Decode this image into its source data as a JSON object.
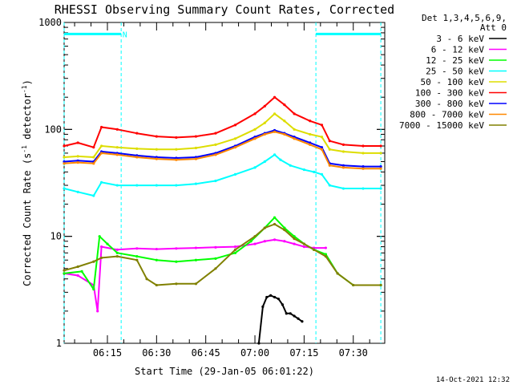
{
  "chart_data": {
    "type": "line",
    "title": "RHESSI Observing Summary Count Rates, Corrected",
    "ylabel_main": "Corrected Count Rate (s",
    "ylabel_sup1": "-1",
    "ylabel_mid": " detector",
    "ylabel_sup2": "-1",
    "ylabel_end": ")",
    "xlabel": "Start Time (29-Jan-05 06:01:22)",
    "timestamp": "14-Oct-2021 12:32",
    "y_scale": "log",
    "ylim": [
      1,
      1000
    ],
    "xlim_minutes": [
      6.03,
      7.66
    ],
    "y_ticks": [
      {
        "value": 1,
        "label": "1"
      },
      {
        "value": 10,
        "label": "10"
      },
      {
        "value": 100,
        "label": "100"
      },
      {
        "value": 1000,
        "label": "1000"
      }
    ],
    "x_ticks": [
      {
        "value": 6.25,
        "label": "06:15"
      },
      {
        "value": 6.5,
        "label": "06:30"
      },
      {
        "value": 6.75,
        "label": "06:45"
      },
      {
        "value": 7.0,
        "label": "07:00"
      },
      {
        "value": 7.25,
        "label": "07:15"
      },
      {
        "value": 7.5,
        "label": "07:30"
      }
    ],
    "legend_header": [
      "Det 1,3,4,5,6,9,",
      "Att 0"
    ],
    "annotations": [
      {
        "text": "N",
        "x": 6.31,
        "y": 780
      }
    ],
    "night_markers": [
      6.03,
      6.32,
      7.31,
      7.64
    ],
    "night_bars": [
      [
        6.03,
        6.32
      ],
      [
        7.31,
        7.64
      ]
    ],
    "night_color": "#00ffff",
    "series": [
      {
        "name": "3 - 6 keV",
        "color": "#000000",
        "y": [
          [
            7.02,
            1
          ],
          [
            7.04,
            2.2
          ],
          [
            7.06,
            2.7
          ],
          [
            7.08,
            2.8
          ],
          [
            7.1,
            2.7
          ],
          [
            7.12,
            2.6
          ],
          [
            7.14,
            2.3
          ],
          [
            7.16,
            1.9
          ],
          [
            7.18,
            1.9
          ],
          [
            7.2,
            1.8
          ],
          [
            7.22,
            1.7
          ],
          [
            7.24,
            1.6
          ]
        ]
      },
      {
        "name": "6 - 12 keV",
        "color": "#ff00ff",
        "y": [
          [
            6.03,
            4.5
          ],
          [
            6.1,
            4.3
          ],
          [
            6.18,
            3.5
          ],
          [
            6.2,
            2.0
          ],
          [
            6.22,
            8.0
          ],
          [
            6.3,
            7.5
          ],
          [
            6.4,
            7.7
          ],
          [
            6.5,
            7.6
          ],
          [
            6.6,
            7.7
          ],
          [
            6.7,
            7.8
          ],
          [
            6.8,
            7.9
          ],
          [
            6.9,
            8.0
          ],
          [
            7.0,
            8.5
          ],
          [
            7.05,
            9.0
          ],
          [
            7.1,
            9.3
          ],
          [
            7.15,
            9.0
          ],
          [
            7.2,
            8.5
          ],
          [
            7.25,
            8.0
          ],
          [
            7.3,
            7.8
          ],
          [
            7.36,
            7.8
          ]
        ]
      },
      {
        "name": "12 - 25 keV",
        "color": "#00ff00",
        "y": [
          [
            6.03,
            4.5
          ],
          [
            6.12,
            4.7
          ],
          [
            6.18,
            3.2
          ],
          [
            6.21,
            10
          ],
          [
            6.25,
            8.5
          ],
          [
            6.3,
            7.0
          ],
          [
            6.4,
            6.5
          ],
          [
            6.5,
            6.0
          ],
          [
            6.6,
            5.8
          ],
          [
            6.7,
            6.0
          ],
          [
            6.8,
            6.2
          ],
          [
            6.9,
            7.0
          ],
          [
            6.98,
            9.0
          ],
          [
            7.05,
            12
          ],
          [
            7.1,
            15
          ],
          [
            7.15,
            12
          ],
          [
            7.2,
            10
          ],
          [
            7.25,
            8.5
          ],
          [
            7.3,
            7.5
          ],
          [
            7.36,
            6.8
          ],
          [
            7.42,
            4.5
          ],
          [
            7.5,
            3.5
          ],
          [
            7.64,
            3.5
          ]
        ]
      },
      {
        "name": "25 - 50 keV",
        "color": "#00ffff",
        "y": [
          [
            6.03,
            28
          ],
          [
            6.1,
            26
          ],
          [
            6.18,
            24
          ],
          [
            6.22,
            32
          ],
          [
            6.3,
            30
          ],
          [
            6.4,
            30
          ],
          [
            6.5,
            30
          ],
          [
            6.6,
            30
          ],
          [
            6.7,
            31
          ],
          [
            6.8,
            33
          ],
          [
            6.9,
            38
          ],
          [
            7.0,
            44
          ],
          [
            7.05,
            50
          ],
          [
            7.1,
            58
          ],
          [
            7.13,
            52
          ],
          [
            7.18,
            46
          ],
          [
            7.25,
            42
          ],
          [
            7.3,
            40
          ],
          [
            7.34,
            38
          ],
          [
            7.38,
            30
          ],
          [
            7.45,
            28
          ],
          [
            7.55,
            28
          ],
          [
            7.64,
            28
          ]
        ]
      },
      {
        "name": "50 - 100 keV",
        "color": "#dddd00",
        "y": [
          [
            6.03,
            55
          ],
          [
            6.1,
            56
          ],
          [
            6.18,
            55
          ],
          [
            6.22,
            70
          ],
          [
            6.3,
            68
          ],
          [
            6.4,
            66
          ],
          [
            6.5,
            65
          ],
          [
            6.6,
            65
          ],
          [
            6.7,
            67
          ],
          [
            6.8,
            72
          ],
          [
            6.9,
            82
          ],
          [
            7.0,
            100
          ],
          [
            7.05,
            115
          ],
          [
            7.1,
            140
          ],
          [
            7.15,
            120
          ],
          [
            7.2,
            100
          ],
          [
            7.28,
            90
          ],
          [
            7.34,
            85
          ],
          [
            7.38,
            65
          ],
          [
            7.45,
            62
          ],
          [
            7.55,
            60
          ],
          [
            7.64,
            60
          ]
        ]
      },
      {
        "name": "100 - 300 keV",
        "color": "#ff0000",
        "y": [
          [
            6.03,
            70
          ],
          [
            6.1,
            75
          ],
          [
            6.18,
            68
          ],
          [
            6.22,
            105
          ],
          [
            6.3,
            100
          ],
          [
            6.4,
            92
          ],
          [
            6.5,
            86
          ],
          [
            6.6,
            84
          ],
          [
            6.7,
            86
          ],
          [
            6.8,
            92
          ],
          [
            6.9,
            110
          ],
          [
            7.0,
            140
          ],
          [
            7.05,
            165
          ],
          [
            7.1,
            200
          ],
          [
            7.15,
            170
          ],
          [
            7.2,
            140
          ],
          [
            7.28,
            120
          ],
          [
            7.34,
            110
          ],
          [
            7.38,
            78
          ],
          [
            7.45,
            72
          ],
          [
            7.55,
            70
          ],
          [
            7.64,
            70
          ]
        ]
      },
      {
        "name": "300 - 800 keV",
        "color": "#0000ff",
        "y": [
          [
            6.03,
            50
          ],
          [
            6.1,
            51
          ],
          [
            6.18,
            50
          ],
          [
            6.22,
            62
          ],
          [
            6.3,
            60
          ],
          [
            6.4,
            57
          ],
          [
            6.5,
            55
          ],
          [
            6.6,
            54
          ],
          [
            6.7,
            55
          ],
          [
            6.8,
            60
          ],
          [
            6.9,
            70
          ],
          [
            7.0,
            85
          ],
          [
            7.05,
            92
          ],
          [
            7.1,
            98
          ],
          [
            7.15,
            92
          ],
          [
            7.2,
            85
          ],
          [
            7.28,
            75
          ],
          [
            7.34,
            68
          ],
          [
            7.38,
            48
          ],
          [
            7.45,
            46
          ],
          [
            7.55,
            45
          ],
          [
            7.64,
            45
          ]
        ]
      },
      {
        "name": "800 - 7000 keV",
        "color": "#ff8800",
        "y": [
          [
            6.03,
            48
          ],
          [
            6.1,
            49
          ],
          [
            6.18,
            48
          ],
          [
            6.22,
            60
          ],
          [
            6.3,
            58
          ],
          [
            6.4,
            55
          ],
          [
            6.5,
            53
          ],
          [
            6.6,
            52
          ],
          [
            6.7,
            53
          ],
          [
            6.8,
            58
          ],
          [
            6.9,
            68
          ],
          [
            7.0,
            82
          ],
          [
            7.05,
            90
          ],
          [
            7.1,
            95
          ],
          [
            7.15,
            90
          ],
          [
            7.2,
            82
          ],
          [
            7.28,
            72
          ],
          [
            7.34,
            65
          ],
          [
            7.38,
            46
          ],
          [
            7.45,
            44
          ],
          [
            7.55,
            43
          ],
          [
            7.64,
            43
          ]
        ]
      },
      {
        "name": "7000 - 15000 keV",
        "color": "#808000",
        "y": [
          [
            6.03,
            4.8
          ],
          [
            6.1,
            5.2
          ],
          [
            6.18,
            5.8
          ],
          [
            6.22,
            6.3
          ],
          [
            6.3,
            6.5
          ],
          [
            6.4,
            6.0
          ],
          [
            6.45,
            4.0
          ],
          [
            6.5,
            3.5
          ],
          [
            6.6,
            3.6
          ],
          [
            6.7,
            3.6
          ],
          [
            6.8,
            5.0
          ],
          [
            6.9,
            7.5
          ],
          [
            7.0,
            10
          ],
          [
            7.05,
            12
          ],
          [
            7.1,
            13
          ],
          [
            7.15,
            11.5
          ],
          [
            7.2,
            9.5
          ],
          [
            7.25,
            8.5
          ],
          [
            7.3,
            7.5
          ],
          [
            7.36,
            6.5
          ],
          [
            7.42,
            4.5
          ],
          [
            7.5,
            3.5
          ],
          [
            7.64,
            3.5
          ]
        ]
      }
    ]
  }
}
